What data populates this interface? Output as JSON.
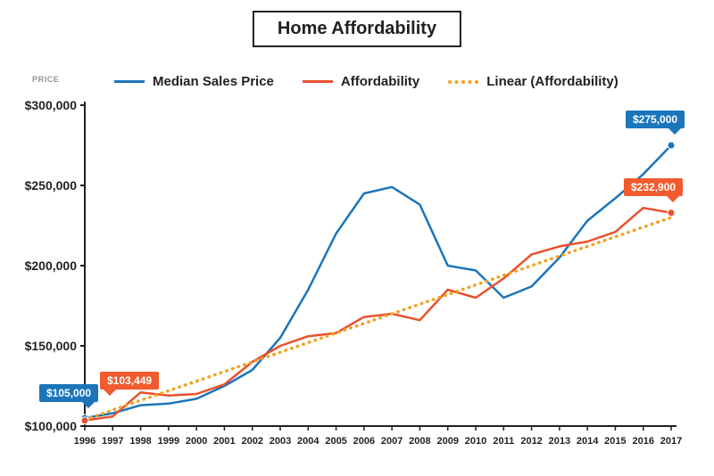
{
  "title": "Home Affordability",
  "y_axis_title": "PRICE",
  "legend": {
    "items": [
      {
        "label": "Median Sales Price",
        "color": "#1b75bb",
        "style": "solid"
      },
      {
        "label": "Affordability",
        "color": "#e9512d",
        "style": "solid"
      },
      {
        "label": "Linear (Affordability)",
        "color": "#f5a01f",
        "style": "dotted"
      }
    ]
  },
  "annotations": [
    {
      "label": "$105,000",
      "series": "Median Sales Price",
      "year": "1996"
    },
    {
      "label": "$103,449",
      "series": "Affordability",
      "year": "1996"
    },
    {
      "label": "$275,000",
      "series": "Median Sales Price",
      "year": "2017"
    },
    {
      "label": "$232,900",
      "series": "Affordability",
      "year": "2017"
    }
  ],
  "chart_data": {
    "type": "line",
    "title": "Home Affordability",
    "xlabel": "",
    "ylabel": "PRICE",
    "legend_position": "top",
    "grid": false,
    "ylim": [
      100000,
      300000
    ],
    "yticks": [
      100000,
      150000,
      200000,
      250000,
      300000
    ],
    "ytick_labels": [
      "$100,000",
      "$150,000",
      "$200,000",
      "$250,000",
      "$300,000"
    ],
    "x": [
      1996,
      1997,
      1998,
      1999,
      2000,
      2001,
      2002,
      2003,
      2004,
      2005,
      2006,
      2007,
      2008,
      2009,
      2010,
      2011,
      2012,
      2013,
      2014,
      2015,
      2016,
      2017
    ],
    "series": [
      {
        "name": "Median Sales Price",
        "color": "#1b75bb",
        "style": "solid",
        "values": [
          105000,
          108000,
          113000,
          114000,
          117000,
          125000,
          135000,
          155000,
          185000,
          220000,
          245000,
          249000,
          238000,
          200000,
          197000,
          180000,
          187000,
          205000,
          228000,
          242000,
          257000,
          275000
        ]
      },
      {
        "name": "Affordability",
        "color": "#e9512d",
        "style": "solid",
        "values": [
          103449,
          106000,
          121000,
          119000,
          120000,
          126000,
          140000,
          150000,
          156000,
          158000,
          168000,
          170000,
          166000,
          185000,
          180000,
          192000,
          207000,
          212000,
          215000,
          221000,
          236000,
          232900
        ]
      },
      {
        "name": "Linear (Affordability)",
        "color": "#f5a01f",
        "style": "dotted",
        "values": [
          104000,
          110000,
          116000,
          122000,
          128000,
          134000,
          140000,
          146000,
          152000,
          158000,
          164000,
          170000,
          176000,
          182000,
          188000,
          194000,
          200000,
          206000,
          212000,
          218000,
          224000,
          230000
        ]
      }
    ]
  }
}
